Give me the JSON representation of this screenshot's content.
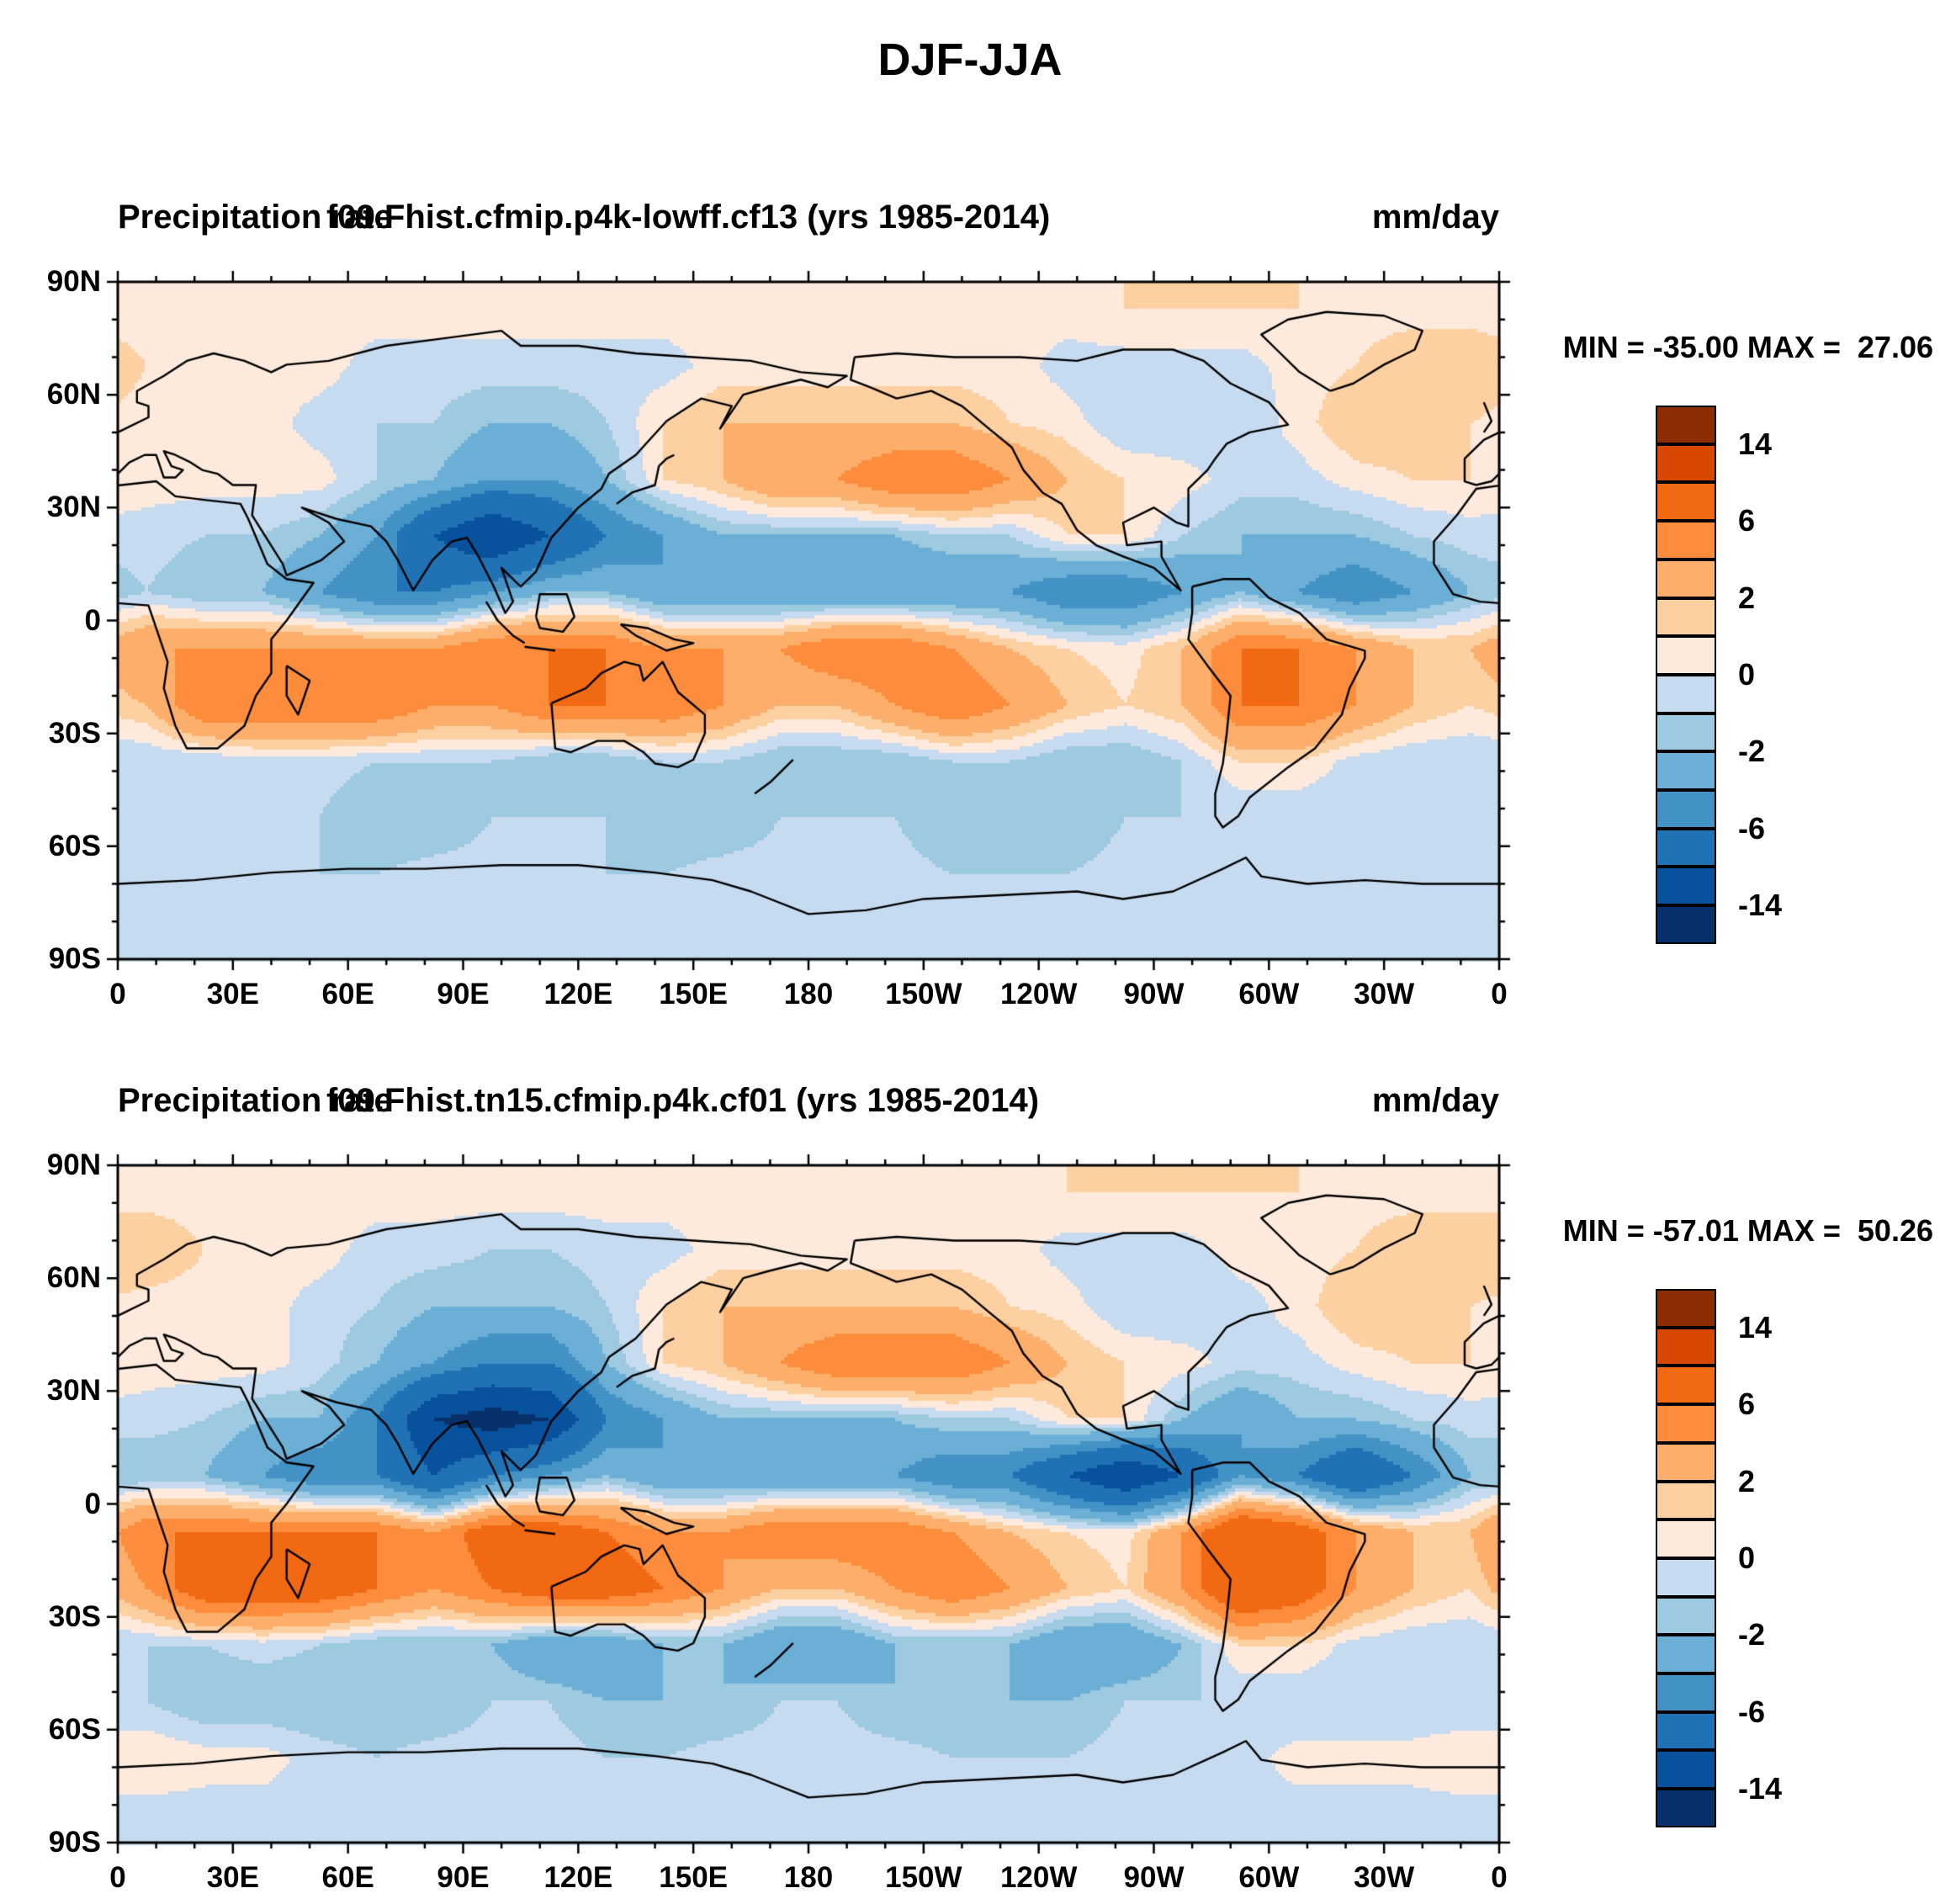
{
  "main_title": "DJF-JJA",
  "panels": [
    {
      "title_left": "Precipitation rate",
      "title_center": "f09.Fhist.cfmip.p4k-lowff.cf13 (yrs 1985-2014)",
      "title_right": "mm/day",
      "minmax": "MIN = -35.00 MAX =  27.06"
    },
    {
      "title_left": "Precipitation rate",
      "title_center": "f09.Fhist.tn15.cfmip.p4k.cf01 (yrs 1985-2014)",
      "title_right": "mm/day",
      "minmax": "MIN = -57.01 MAX =  50.26"
    }
  ],
  "axes": {
    "lat_ticks": [
      {
        "label": "90N",
        "deg": 90
      },
      {
        "label": "60N",
        "deg": 60
      },
      {
        "label": "30N",
        "deg": 30
      },
      {
        "label": "0",
        "deg": 0
      },
      {
        "label": "30S",
        "deg": -30
      },
      {
        "label": "60S",
        "deg": -60
      },
      {
        "label": "90S",
        "deg": -90
      }
    ],
    "lon_ticks": [
      {
        "label": "0",
        "deg": 0
      },
      {
        "label": "30E",
        "deg": 30
      },
      {
        "label": "60E",
        "deg": 60
      },
      {
        "label": "90E",
        "deg": 90
      },
      {
        "label": "120E",
        "deg": 120
      },
      {
        "label": "150E",
        "deg": 150
      },
      {
        "label": "180",
        "deg": 180
      },
      {
        "label": "150W",
        "deg": 210
      },
      {
        "label": "120W",
        "deg": 240
      },
      {
        "label": "90W",
        "deg": 270
      },
      {
        "label": "60W",
        "deg": 300
      },
      {
        "label": "30W",
        "deg": 330
      },
      {
        "label": "0",
        "deg": 360
      }
    ]
  },
  "colors": {
    "palette": [
      "#08306b",
      "#08519c",
      "#2171b5",
      "#4292c6",
      "#6baed6",
      "#9ecae1",
      "#c6dbef",
      "#fdeadc",
      "#fdd0a2",
      "#fdae6b",
      "#fd8d3c",
      "#f16913",
      "#d94801",
      "#8c2d04"
    ],
    "coastline": "#000000",
    "frame": "#000000"
  },
  "chart_data": [
    {
      "type": "heatmap",
      "title": "Precipitation rate  f09.Fhist.cfmip.p4k-lowff.cf13 (yrs 1985-2014)",
      "season_diff": "DJF-JJA",
      "units": "mm/day",
      "min": -35.0,
      "max": 27.06,
      "lon_range": [
        0,
        360
      ],
      "lat_range": [
        -90,
        90
      ],
      "grid_lon_step": 15,
      "grid_lat_step": 15,
      "levels": [
        -14,
        -10,
        -6,
        -4,
        -2,
        -1,
        0,
        1,
        2,
        4,
        6,
        10,
        14
      ],
      "colorbar_labels": [
        "14",
        "6",
        "2",
        "0",
        "-2",
        "-6",
        "-14"
      ],
      "values": [
        [
          0.5,
          0.5,
          0.5,
          0.5,
          0.5,
          0.5,
          0.5,
          0.5,
          0.5,
          0.5,
          0.5,
          0.5,
          0.5,
          0.5,
          0.5,
          0.5,
          0.5,
          1,
          1,
          1,
          1,
          0.5,
          0.5,
          0.5
        ],
        [
          1,
          1,
          0.5,
          0.5,
          -0.5,
          -0.5,
          -0.5,
          -0.5,
          -0.5,
          -0.5,
          0.5,
          0.5,
          0.5,
          0.5,
          0.5,
          0.5,
          -0.5,
          -0.5,
          -0.5,
          -0.5,
          0.5,
          1,
          2,
          2
        ],
        [
          0.5,
          0.5,
          0.5,
          -0.5,
          -1,
          -1,
          -2,
          -2,
          -1,
          1,
          2,
          2,
          2,
          2,
          2,
          1,
          0.5,
          -1,
          -1,
          -1,
          0.5,
          2,
          2,
          1
        ],
        [
          0.5,
          0.5,
          0.5,
          0.5,
          -1,
          -2,
          -4,
          -4,
          -2,
          1,
          2,
          4,
          4,
          6,
          6,
          4,
          2,
          1,
          0.5,
          -0.5,
          -0.5,
          0.5,
          1,
          1
        ],
        [
          -0.5,
          -1,
          -1,
          -2,
          -4,
          -10,
          -14,
          -10,
          -6,
          -4,
          -2,
          -2,
          -2,
          -2,
          -1,
          -1,
          1,
          1,
          -1,
          -2,
          -2,
          -2,
          -1,
          -0.5
        ],
        [
          -1,
          -2,
          -2,
          -4,
          -6,
          -6,
          -4,
          -2,
          -2,
          -4,
          -4,
          -4,
          -4,
          -4,
          -4,
          -4,
          -6,
          -6,
          -4,
          -2,
          -4,
          -6,
          -4,
          -2
        ],
        [
          4,
          4,
          4,
          4,
          4,
          4,
          6,
          6,
          6,
          4,
          4,
          4,
          6,
          6,
          4,
          2,
          1,
          0.5,
          2,
          6,
          6,
          4,
          2,
          2
        ],
        [
          2,
          6,
          6,
          6,
          6,
          4,
          4,
          6,
          6,
          6,
          4,
          2,
          2,
          4,
          6,
          4,
          2,
          1,
          2,
          6,
          6,
          4,
          2,
          1
        ],
        [
          -1,
          -1,
          -0.5,
          -0.5,
          -1,
          -1,
          -1,
          -2,
          -2,
          -1,
          -1,
          -2,
          -2,
          -2,
          -1,
          -1,
          -2,
          -2,
          -1,
          1,
          1,
          -0.5,
          -1,
          -1
        ],
        [
          -1,
          -1,
          -1,
          -1,
          -2,
          -2,
          -1,
          -1,
          -1,
          -2,
          -2,
          -1,
          -1,
          -1,
          -2,
          -2,
          -2,
          -1,
          -1,
          -1,
          -1,
          -1,
          -1,
          -1
        ],
        [
          -0.5,
          -0.5,
          -0.5,
          -1,
          -1,
          -0.5,
          -0.5,
          -0.5,
          -1,
          -1,
          -0.5,
          -0.5,
          -0.5,
          -0.5,
          -1,
          -1,
          -1,
          -0.5,
          -0.5,
          -0.5,
          -0.5,
          -0.5,
          -0.5,
          -0.5
        ],
        [
          -0.5,
          -0.5,
          -0.5,
          -0.5,
          -0.5,
          -0.5,
          -0.5,
          -0.5,
          -0.5,
          -0.5,
          -0.5,
          -0.5,
          -0.5,
          -0.5,
          -0.5,
          -0.5,
          -0.5,
          -0.5,
          -0.5,
          -0.5,
          -0.5,
          -0.5,
          -0.5,
          -0.5
        ]
      ]
    },
    {
      "type": "heatmap",
      "title": "Precipitation rate  f09.Fhist.tn15.cfmip.p4k.cf01 (yrs 1985-2014)",
      "season_diff": "DJF-JJA",
      "units": "mm/day",
      "min": -57.01,
      "max": 50.26,
      "lon_range": [
        0,
        360
      ],
      "lat_range": [
        -90,
        90
      ],
      "grid_lon_step": 15,
      "grid_lat_step": 15,
      "levels": [
        -14,
        -10,
        -6,
        -4,
        -2,
        -1,
        0,
        1,
        2,
        4,
        6,
        10,
        14
      ],
      "colorbar_labels": [
        "14",
        "6",
        "2",
        "0",
        "-2",
        "-6",
        "-14"
      ],
      "values": [
        [
          0.5,
          0.5,
          0.5,
          0.5,
          0.5,
          0.5,
          0.5,
          0.5,
          0.5,
          0.5,
          0.5,
          0.5,
          0.5,
          0.5,
          0.5,
          0.5,
          1,
          1,
          1,
          1,
          1,
          0.5,
          0.5,
          0.5
        ],
        [
          2,
          1,
          0.5,
          0.5,
          -0.5,
          -0.5,
          -1,
          -1,
          -0.5,
          -0.5,
          0.5,
          0.5,
          0.5,
          0.5,
          0.5,
          0.5,
          -0.5,
          -0.5,
          -0.5,
          0.5,
          0.5,
          1,
          2,
          2
        ],
        [
          0.5,
          0.5,
          0.5,
          -0.5,
          -1,
          -2,
          -2,
          -2,
          -1,
          1,
          2,
          2,
          2,
          2,
          2,
          1,
          0.5,
          -1,
          -1,
          -0.5,
          0.5,
          2,
          2,
          1
        ],
        [
          0.5,
          0.5,
          0.5,
          -0.5,
          -2,
          -4,
          -6,
          -6,
          -2,
          1,
          2,
          4,
          6,
          6,
          6,
          4,
          2,
          1,
          0.5,
          -0.5,
          -0.5,
          0.5,
          1,
          1
        ],
        [
          -0.5,
          -1,
          -2,
          -2,
          -6,
          -14,
          -16,
          -14,
          -6,
          -4,
          -2,
          -2,
          -2,
          -2,
          -1,
          -1,
          1,
          1,
          -2,
          -4,
          -2,
          -2,
          -1,
          -0.5
        ],
        [
          -2,
          -2,
          -4,
          -6,
          -6,
          -10,
          -6,
          -4,
          -2,
          -4,
          -4,
          -4,
          -4,
          -4,
          -6,
          -6,
          -10,
          -14,
          -10,
          -4,
          -6,
          -10,
          -6,
          -2
        ],
        [
          6,
          6,
          6,
          6,
          6,
          4,
          8,
          8,
          6,
          4,
          4,
          6,
          6,
          6,
          4,
          2,
          1,
          0.5,
          4,
          10,
          8,
          4,
          2,
          2
        ],
        [
          4,
          8,
          8,
          8,
          6,
          4,
          6,
          8,
          8,
          6,
          4,
          2,
          2,
          4,
          6,
          4,
          2,
          1,
          4,
          10,
          8,
          4,
          2,
          1
        ],
        [
          -1,
          -1,
          -0.5,
          -1,
          -2,
          -2,
          -2,
          -4,
          -4,
          -2,
          -2,
          -4,
          -4,
          -2,
          -2,
          -2,
          -4,
          -4,
          -2,
          1,
          1,
          -0.5,
          -1,
          -1
        ],
        [
          -1,
          -2,
          -2,
          -2,
          -2,
          -2,
          -1,
          -1,
          -2,
          -2,
          -2,
          -1,
          -1,
          -2,
          -2,
          -2,
          -2,
          -1,
          -1,
          -1,
          -1,
          -1,
          -1,
          -1
        ],
        [
          1,
          0.5,
          0.5,
          -0.5,
          -1,
          -0.5,
          -0.5,
          -0.5,
          -1,
          -1,
          -0.5,
          -0.5,
          -0.5,
          -0.5,
          -1,
          -1,
          -1,
          -0.5,
          -0.5,
          -0.5,
          0.5,
          0.5,
          0.5,
          1
        ],
        [
          -0.5,
          -0.5,
          -0.5,
          -0.5,
          -0.5,
          -0.5,
          -0.5,
          -0.5,
          -0.5,
          -0.5,
          -0.5,
          -0.5,
          -0.5,
          -0.5,
          -0.5,
          -0.5,
          -0.5,
          -0.5,
          -0.5,
          -0.5,
          -0.5,
          -0.5,
          -0.5,
          -0.5
        ]
      ]
    }
  ]
}
